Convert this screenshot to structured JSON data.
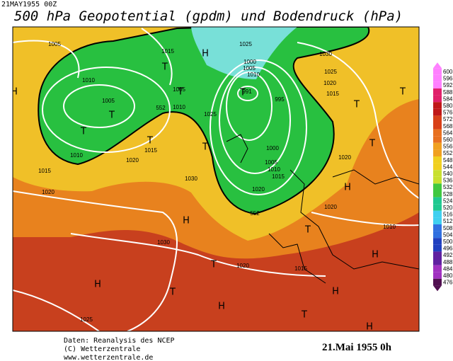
{
  "header": {
    "stamp": "21MAY1955 00Z",
    "title": "500 hPa Geopotential (gpdm) und Bodendruck (hPa)"
  },
  "colorbar": {
    "labels": [
      "600",
      "596",
      "592",
      "588",
      "584",
      "580",
      "576",
      "572",
      "568",
      "564",
      "560",
      "556",
      "552",
      "548",
      "544",
      "540",
      "536",
      "532",
      "528",
      "524",
      "520",
      "516",
      "512",
      "508",
      "504",
      "500",
      "496",
      "492",
      "488",
      "484",
      "480",
      "476"
    ]
  },
  "map": {
    "labels": [
      "1005",
      "1015",
      "1025",
      "1030",
      "1025",
      "1020",
      "1015",
      "1010",
      "1005",
      "1005",
      "1010",
      "1025",
      "1010",
      "1020",
      "1015",
      "1015",
      "1020",
      "1030",
      "1000",
      "1005",
      "1010",
      "1015",
      "1020",
      "1020",
      "1020",
      "1010",
      "1030",
      "1020",
      "1015",
      "1025",
      "1000",
      "1005",
      "1010",
      "991",
      "995",
      "552",
      "552",
      "H",
      "H",
      "H",
      "H",
      "H",
      "H",
      "H",
      "H",
      "H",
      "T",
      "T",
      "T",
      "T",
      "T",
      "T",
      "T",
      "T",
      "T",
      "T",
      "T",
      "T",
      "T",
      "T"
    ]
  },
  "footer": {
    "source": "Daten: Reanalysis des NCEP",
    "copyright": "(C) Wetterzentrale",
    "url": "www.wetterzentrale.de",
    "date": "21.Mai 1955 0h"
  }
}
